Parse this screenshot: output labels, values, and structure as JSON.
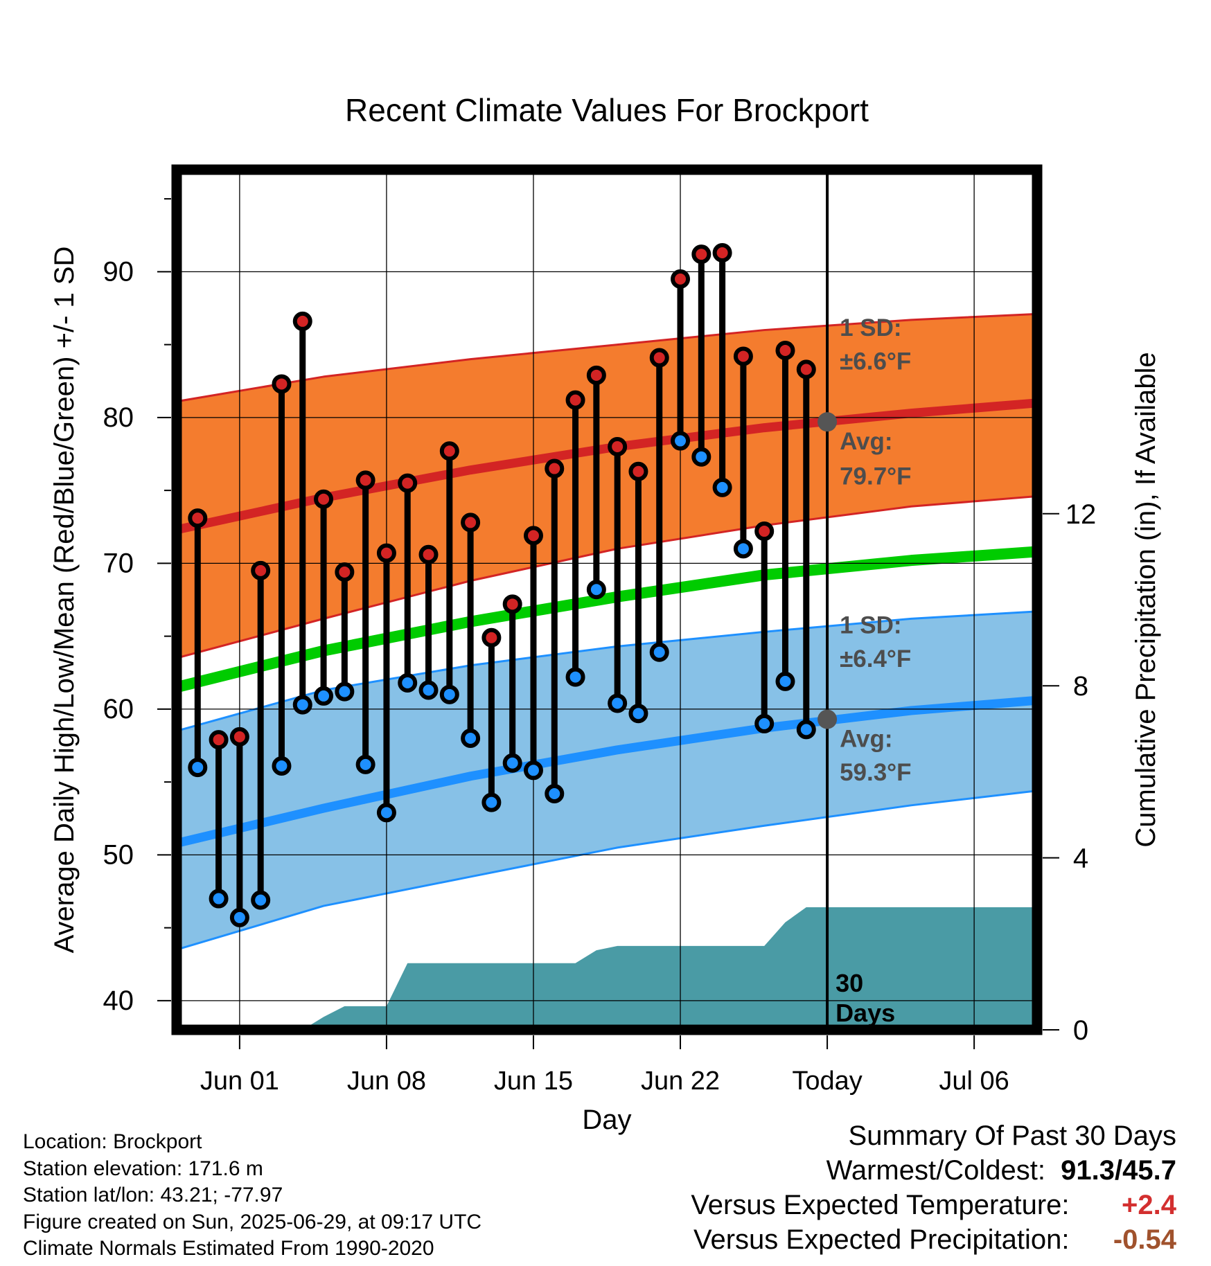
{
  "chart_data": {
    "type": "line",
    "title": "Recent Climate Values For Brockport",
    "xlabel": "Day",
    "ylabel_left": "Average Daily High/Low/Mean (Red/Blue/Green) +/- 1 SD",
    "ylabel_right": "Cumulative Precipitation (in), If Available",
    "x_range": [
      "May 29",
      "Jul 09"
    ],
    "ylim_left": [
      38,
      97
    ],
    "ylim_right": [
      0,
      20
    ],
    "x_ticks": [
      {
        "date": "Jun 01",
        "label": "Jun 01"
      },
      {
        "date": "Jun 08",
        "label": "Jun 08"
      },
      {
        "date": "Jun 15",
        "label": "Jun 15"
      },
      {
        "date": "Jun 22",
        "label": "Jun 22"
      },
      {
        "date": "Jun 29",
        "label": "Today"
      },
      {
        "date": "Jul 06",
        "label": "Jul 06"
      }
    ],
    "y_ticks_left": [
      40,
      50,
      60,
      70,
      80,
      90
    ],
    "y_ticks_right": [
      0,
      4,
      8,
      12
    ],
    "today_marker": {
      "date": "Jun 29",
      "label_line1": "30",
      "label_line2": "Days"
    },
    "daily_observations": {
      "dates": [
        "May 30",
        "May 31",
        "Jun 01",
        "Jun 02",
        "Jun 03",
        "Jun 04",
        "Jun 05",
        "Jun 06",
        "Jun 07",
        "Jun 08",
        "Jun 09",
        "Jun 10",
        "Jun 11",
        "Jun 12",
        "Jun 13",
        "Jun 14",
        "Jun 15",
        "Jun 16",
        "Jun 17",
        "Jun 18",
        "Jun 19",
        "Jun 20",
        "Jun 21",
        "Jun 22",
        "Jun 23",
        "Jun 24",
        "Jun 25",
        "Jun 26",
        "Jun 27",
        "Jun 28"
      ],
      "highs": [
        73.1,
        57.9,
        58.1,
        69.5,
        82.3,
        86.6,
        74.4,
        69.4,
        75.7,
        70.7,
        75.5,
        70.6,
        77.7,
        72.8,
        64.9,
        67.2,
        71.9,
        76.5,
        81.2,
        82.9,
        78.0,
        76.3,
        84.1,
        89.5,
        91.2,
        91.3,
        84.2,
        72.2,
        84.6,
        83.3
      ],
      "lows": [
        56.0,
        47.0,
        45.7,
        46.9,
        56.1,
        60.3,
        60.9,
        61.2,
        56.2,
        52.9,
        61.8,
        61.3,
        61.0,
        58.0,
        53.6,
        56.3,
        55.8,
        54.2,
        62.2,
        68.2,
        60.4,
        59.7,
        63.9,
        78.4,
        77.3,
        75.2,
        71.0,
        59.0,
        61.9,
        58.6
      ]
    },
    "normals": {
      "dates": [
        "May 29",
        "Jun 05",
        "Jun 12",
        "Jun 19",
        "Jun 26",
        "Jul 03",
        "Jul 09"
      ],
      "avg_high": [
        72.3,
        74.5,
        76.4,
        78.0,
        79.3,
        80.3,
        81.0
      ],
      "avg_high_sd_upper": [
        81.1,
        82.8,
        84.0,
        85.0,
        86.0,
        86.7,
        87.1
      ],
      "avg_high_sd_lower": [
        63.5,
        66.2,
        68.8,
        71.0,
        72.6,
        73.9,
        74.6
      ],
      "avg_mean": [
        61.5,
        64.0,
        66.0,
        67.7,
        69.2,
        70.2,
        70.8
      ],
      "avg_low": [
        50.8,
        53.2,
        55.4,
        57.2,
        58.7,
        59.9,
        60.6
      ],
      "avg_low_sd_upper": [
        58.5,
        61.3,
        63.0,
        64.3,
        65.3,
        66.2,
        66.7
      ],
      "avg_low_sd_lower": [
        43.5,
        46.5,
        48.5,
        50.5,
        52.0,
        53.4,
        54.4
      ],
      "colors": {
        "high": "#d32424",
        "high_band": "#f47c2e",
        "mean": "#00cc00",
        "low": "#1e90ff",
        "low_band": "#87c1e7"
      }
    },
    "annotations": {
      "high_sd": {
        "line1": "1 SD:",
        "line2": "±6.6°F"
      },
      "high_avg": {
        "line1": "Avg:",
        "line2": "79.7°F",
        "value": 79.7
      },
      "low_sd": {
        "line1": "1 SD:",
        "line2": "±6.4°F"
      },
      "low_avg": {
        "line1": "Avg:",
        "line2": "59.3°F",
        "value": 59.3
      }
    },
    "cumulative_precip": {
      "dates": [
        "May 29",
        "Jun 04",
        "Jun 05",
        "Jun 06",
        "Jun 07",
        "Jun 08",
        "Jun 09",
        "Jun 17",
        "Jun 18",
        "Jun 19",
        "Jun 20",
        "Jun 21",
        "Jun 22",
        "Jun 26",
        "Jun 27",
        "Jun 28",
        "Jul 09"
      ],
      "values": [
        0,
        0,
        0.3,
        0.55,
        0.55,
        0.55,
        1.55,
        1.55,
        1.85,
        1.95,
        1.95,
        1.95,
        1.95,
        1.95,
        2.5,
        2.85,
        2.85
      ],
      "color": "#4a9ba5"
    }
  },
  "info": {
    "location": "Location: Brockport",
    "elevation": "Station elevation: 171.6 m",
    "latlon": "Station lat/lon: 43.21; -77.97",
    "created": "Figure created on Sun, 2025-06-29, at 09:17 UTC",
    "normals": "Climate Normals Estimated From 1990-2020"
  },
  "summary": {
    "title": "Summary Of Past 30 Days",
    "warmest_coldest_label": "Warmest/Coldest:",
    "warmest_coldest_value": "91.3/45.7",
    "temp_label": "Versus Expected Temperature:",
    "temp_value": "+2.4",
    "precip_label": "Versus Expected Precipitation:",
    "precip_value": "-0.54"
  }
}
